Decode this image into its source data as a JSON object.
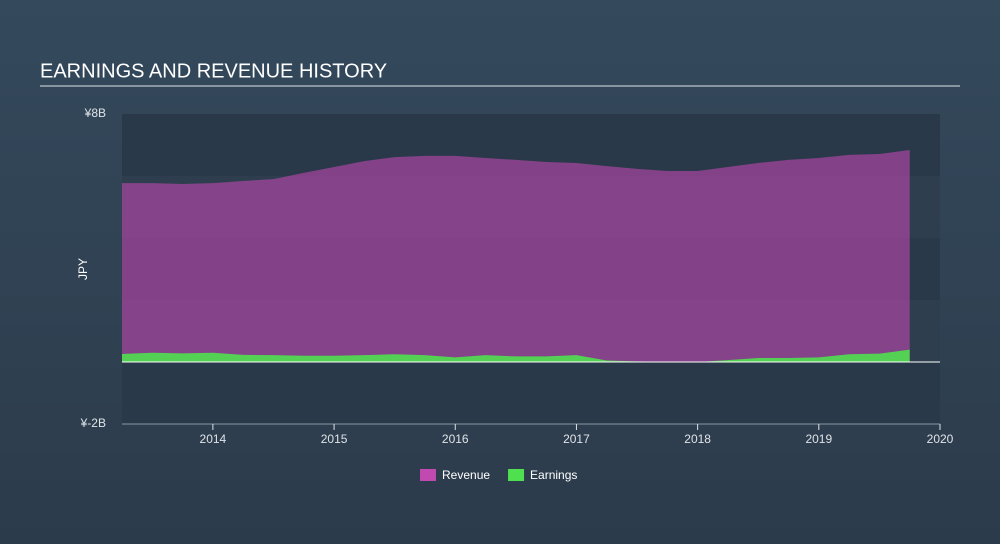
{
  "chart_data": {
    "type": "area",
    "title": "EARNINGS AND REVENUE HISTORY",
    "ylabel": "JPY",
    "x": [
      2013.25,
      2013.5,
      2013.75,
      2014.0,
      2014.25,
      2014.5,
      2014.75,
      2015.0,
      2015.25,
      2015.5,
      2015.75,
      2016.0,
      2016.25,
      2016.5,
      2016.75,
      2017.0,
      2017.25,
      2017.5,
      2017.75,
      2018.0,
      2018.25,
      2018.5,
      2018.75,
      2019.0,
      2019.25,
      2019.5,
      2019.75
    ],
    "series": [
      {
        "name": "Revenue",
        "color": "#c04ab0",
        "values": [
          5770000000,
          5770000000,
          5740000000,
          5770000000,
          5840000000,
          5900000000,
          6100000000,
          6290000000,
          6480000000,
          6610000000,
          6650000000,
          6650000000,
          6580000000,
          6520000000,
          6450000000,
          6420000000,
          6320000000,
          6230000000,
          6160000000,
          6160000000,
          6290000000,
          6420000000,
          6520000000,
          6580000000,
          6680000000,
          6710000000,
          6840000000
        ]
      },
      {
        "name": "Earnings",
        "color": "#4fe04f",
        "values": [
          260000000,
          300000000,
          280000000,
          300000000,
          230000000,
          220000000,
          200000000,
          200000000,
          220000000,
          250000000,
          220000000,
          150000000,
          220000000,
          180000000,
          180000000,
          220000000,
          50000000,
          20000000,
          10000000,
          0,
          60000000,
          130000000,
          130000000,
          150000000,
          250000000,
          270000000,
          400000000
        ]
      }
    ],
    "xlim": [
      2013.25,
      2020
    ],
    "xticks": [
      2014,
      2015,
      2016,
      2017,
      2018,
      2019,
      2020
    ],
    "ylim": [
      -2000000000,
      8000000000
    ],
    "yticks": [
      {
        "value": 8000000000,
        "label": "¥8B"
      },
      {
        "value": -2000000000,
        "label": "¥-2B"
      }
    ]
  }
}
